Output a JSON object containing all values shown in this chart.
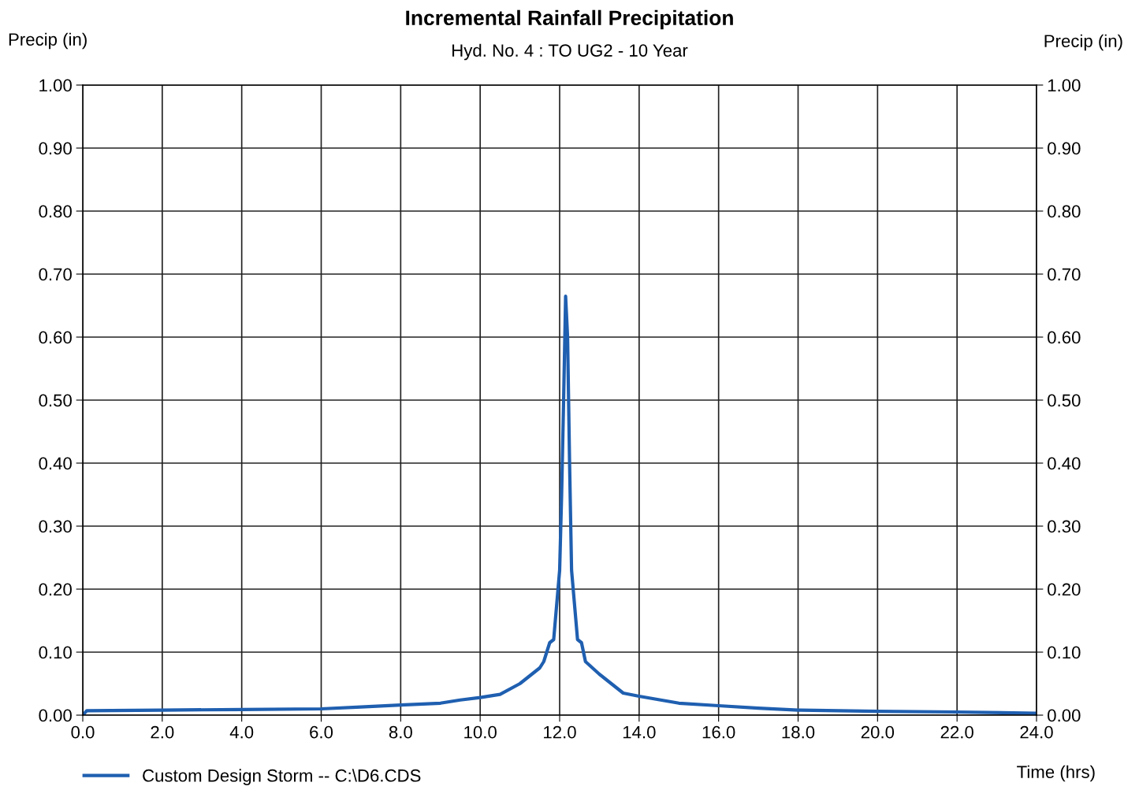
{
  "chart_data": {
    "type": "line",
    "title": "Incremental Rainfall Precipitation",
    "subtitle": "Hyd. No. 4 : TO UG2 - 10 Year",
    "xlabel": "Time (hrs)",
    "ylabel": "Precip (in)",
    "y2label": "Precip (in)",
    "series": [
      {
        "name": "Custom Design Storm -- C:\\D6.CDS",
        "color": "#1f5fb0",
        "x": [
          0,
          0.1,
          2,
          4,
          6,
          7,
          8,
          9,
          9.5,
          10,
          10.5,
          11,
          11.5,
          11.6,
          11.75,
          11.85,
          12.0,
          12.05,
          12.1,
          12.15,
          12.2,
          12.25,
          12.3,
          12.45,
          12.55,
          12.65,
          13,
          13.3,
          13.6,
          14,
          15,
          16,
          17,
          18,
          20,
          22,
          24
        ],
        "values": [
          0,
          0.007,
          0.008,
          0.009,
          0.01,
          0.013,
          0.016,
          0.019,
          0.024,
          0.028,
          0.033,
          0.05,
          0.075,
          0.085,
          0.115,
          0.12,
          0.23,
          0.35,
          0.5,
          0.665,
          0.6,
          0.4,
          0.23,
          0.12,
          0.115,
          0.085,
          0.065,
          0.05,
          0.035,
          0.03,
          0.019,
          0.015,
          0.011,
          0.008,
          0.006,
          0.005,
          0.003
        ]
      }
    ],
    "xlim": [
      0,
      24
    ],
    "xticks": [
      {
        "value": 0,
        "label": "0.0"
      },
      {
        "value": 2,
        "label": "2.0"
      },
      {
        "value": 4,
        "label": "4.0"
      },
      {
        "value": 6,
        "label": "6.0"
      },
      {
        "value": 8,
        "label": "8.0"
      },
      {
        "value": 10,
        "label": "10.0"
      },
      {
        "value": 12,
        "label": "12.0"
      },
      {
        "value": 14,
        "label": "14.0"
      },
      {
        "value": 16,
        "label": "16.0"
      },
      {
        "value": 18,
        "label": "18.0"
      },
      {
        "value": 20,
        "label": "20.0"
      },
      {
        "value": 22,
        "label": "22.0"
      },
      {
        "value": 24,
        "label": "24.0"
      }
    ],
    "ylim": [
      0,
      1
    ],
    "yticks": [
      {
        "value": 0,
        "label": "0.00"
      },
      {
        "value": 0.1,
        "label": "0.10"
      },
      {
        "value": 0.2,
        "label": "0.20"
      },
      {
        "value": 0.3,
        "label": "0.30"
      },
      {
        "value": 0.4,
        "label": "0.40"
      },
      {
        "value": 0.5,
        "label": "0.50"
      },
      {
        "value": 0.6,
        "label": "0.60"
      },
      {
        "value": 0.7,
        "label": "0.70"
      },
      {
        "value": 0.8,
        "label": "0.80"
      },
      {
        "value": 0.9,
        "label": "0.90"
      },
      {
        "value": 1,
        "label": "1.00"
      }
    ],
    "y2lim": [
      0,
      1
    ],
    "y2ticks": [
      {
        "value": 0,
        "label": "0.00"
      },
      {
        "value": 0.1,
        "label": "0.10"
      },
      {
        "value": 0.2,
        "label": "0.20"
      },
      {
        "value": 0.3,
        "label": "0.30"
      },
      {
        "value": 0.4,
        "label": "0.40"
      },
      {
        "value": 0.5,
        "label": "0.50"
      },
      {
        "value": 0.6,
        "label": "0.60"
      },
      {
        "value": 0.7,
        "label": "0.70"
      },
      {
        "value": 0.8,
        "label": "0.80"
      },
      {
        "value": 0.9,
        "label": "0.90"
      },
      {
        "value": 1,
        "label": "1.00"
      }
    ],
    "grid": true,
    "legend": "bottom left",
    "marker": "none",
    "line_style": "solid"
  }
}
